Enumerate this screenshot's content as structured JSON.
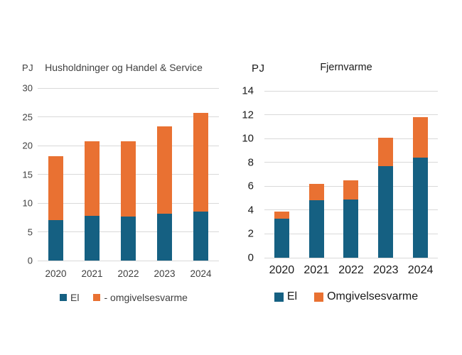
{
  "page": {
    "background": "#FFFFFF",
    "gridline_color": "#D9D9D9"
  },
  "colors": {
    "el_blue": "#156082",
    "omgivelsesvarme_orange": "#E97132",
    "left_text": "#3F3F3F",
    "right_text": "#1A1A1A"
  },
  "chart_data": [
    {
      "type": "bar",
      "stacked": true,
      "title": "Husholdninger og Handel & Service",
      "unit_label": "PJ",
      "categories": [
        "2020",
        "2021",
        "2022",
        "2023",
        "2024"
      ],
      "series": [
        {
          "name": "El",
          "color": "#156082",
          "values": [
            7.0,
            7.8,
            7.6,
            8.1,
            8.5
          ]
        },
        {
          "name": "- omgivelsesvarme",
          "color": "#E97132",
          "values": [
            11.1,
            12.9,
            13.1,
            15.2,
            17.2
          ]
        }
      ],
      "stack_totals": [
        18.1,
        20.7,
        20.7,
        23.3,
        25.7
      ],
      "ylim": [
        0,
        30
      ],
      "ytick_step": 5,
      "yticks": [
        0,
        5,
        10,
        15,
        20,
        25,
        30
      ],
      "grid": true,
      "legend_position": "bottom"
    },
    {
      "type": "bar",
      "stacked": true,
      "title": "Fjernvarme",
      "unit_label": "PJ",
      "categories": [
        "2020",
        "2021",
        "2022",
        "2023",
        "2024"
      ],
      "series": [
        {
          "name": "El",
          "color": "#156082",
          "values": [
            3.3,
            4.8,
            4.9,
            7.7,
            8.4
          ]
        },
        {
          "name": "Omgivelsesvarme",
          "color": "#E97132",
          "values": [
            0.6,
            1.4,
            1.6,
            2.35,
            3.4
          ]
        }
      ],
      "stack_totals": [
        3.9,
        6.2,
        6.5,
        10.05,
        11.8
      ],
      "ylim": [
        0,
        14
      ],
      "ytick_step": 2,
      "yticks": [
        0,
        2,
        4,
        6,
        8,
        10,
        12,
        14
      ],
      "grid": true,
      "legend_position": "bottom"
    }
  ]
}
